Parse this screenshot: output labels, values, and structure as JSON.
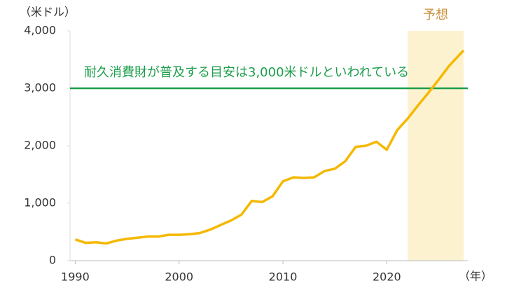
{
  "chart_data": {
    "type": "line",
    "y_unit": "（米ドル）",
    "x_unit": "（年）",
    "x": [
      1990,
      1991,
      1992,
      1993,
      1994,
      1995,
      1996,
      1997,
      1998,
      1999,
      2000,
      2001,
      2002,
      2003,
      2004,
      2005,
      2006,
      2007,
      2008,
      2009,
      2010,
      2011,
      2012,
      2013,
      2014,
      2015,
      2016,
      2017,
      2018,
      2019,
      2020,
      2021,
      2022,
      2023,
      2024,
      2025,
      2026,
      2027.4
    ],
    "series": [
      {
        "color": "#f5b800",
        "values": [
          370,
          310,
          320,
          300,
          350,
          380,
          400,
          420,
          420,
          450,
          450,
          460,
          480,
          540,
          620,
          700,
          800,
          1040,
          1020,
          1120,
          1380,
          1450,
          1440,
          1450,
          1560,
          1600,
          1730,
          1980,
          2000,
          2070,
          1930,
          2270,
          2470,
          2700,
          2920,
          3150,
          3390,
          3660
        ]
      }
    ],
    "xlim": [
      1989.5,
      2027.8
    ],
    "ylim": [
      0,
      4000
    ],
    "xticks": [
      1990,
      2000,
      2010,
      2020
    ],
    "yticks": [
      0,
      {
        "value": 1000,
        "label": "1,000"
      },
      {
        "value": 2000,
        "label": "2,000"
      },
      {
        "value": 3000,
        "label": "3,000"
      },
      {
        "value": 4000,
        "label": "4,000"
      }
    ],
    "reference_line": {
      "value": 3000,
      "color": "#1a9e4a",
      "label": "耐久消費財が普及する目安は3,000米ドルといわれている"
    },
    "forecast": {
      "label": "予想",
      "range": [
        2022,
        2027.4
      ],
      "color": "#fdf2d0",
      "label_color": "#c8903a"
    }
  }
}
